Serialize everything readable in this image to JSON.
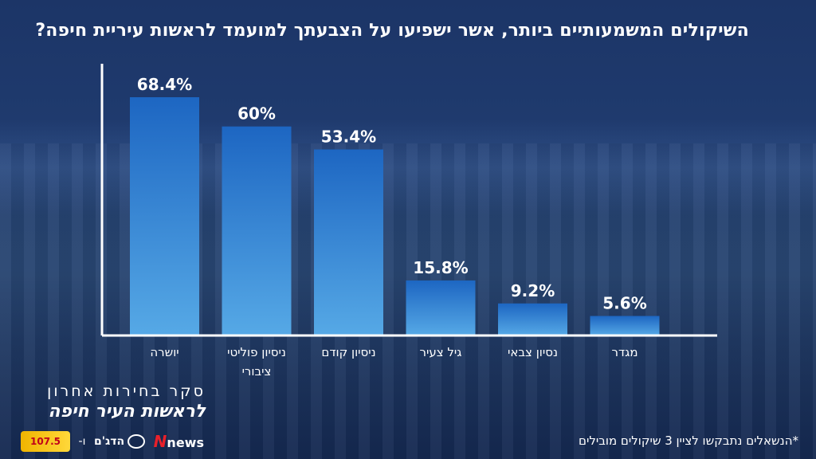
{
  "title": "השיקולים המשמעותיים ביותר, אשר ישפיעו על הצבעתך למועמד לראשות עיריית חיפה?",
  "footnote": "*הנשאלים נתבקשו לציין 3 שיקולים מובילים",
  "brand": {
    "line1": "סקר בחירות אחרון",
    "line2": "לראשות העיר חיפה"
  },
  "logos": {
    "radio": "107.5",
    "dtg": "הדג'ם",
    "separator": "-ו",
    "news": "news"
  },
  "colors": {
    "bar_top": "#1d66c2",
    "bar_bottom": "#56a9e6",
    "axis": "#ffffff",
    "text": "#ffffff"
  },
  "chart_data": {
    "type": "bar",
    "categories": [
      "יושרה",
      "ניסיון פוליטי ציבורי",
      "ניסיון קודם",
      "גיל צעיר",
      "נסיון צבאי",
      "מגדר"
    ],
    "values": [
      68.4,
      60,
      53.4,
      15.8,
      9.2,
      5.6
    ],
    "data_labels": [
      "68.4%",
      "60%",
      "53.4%",
      "15.8%",
      "9.2%",
      "5.6%"
    ],
    "ylim": [
      0,
      80
    ],
    "grid": false,
    "legend": "none"
  }
}
